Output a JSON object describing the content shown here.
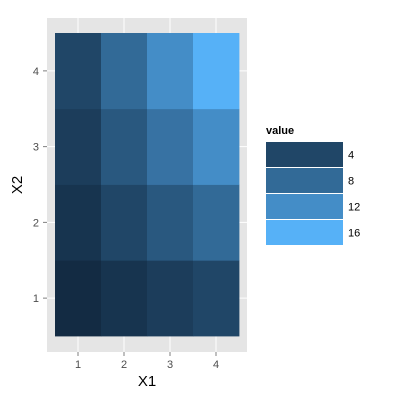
{
  "chart_data": {
    "type": "heatmap",
    "xlabel": "X1",
    "ylabel": "X2",
    "x_categories": [
      "1",
      "2",
      "3",
      "4"
    ],
    "y_categories": [
      "1",
      "2",
      "3",
      "4"
    ],
    "cells": [
      {
        "x": "1",
        "y": "1",
        "value": 1
      },
      {
        "x": "2",
        "y": "1",
        "value": 2
      },
      {
        "x": "3",
        "y": "1",
        "value": 3
      },
      {
        "x": "4",
        "y": "1",
        "value": 4
      },
      {
        "x": "1",
        "y": "2",
        "value": 2
      },
      {
        "x": "2",
        "y": "2",
        "value": 4
      },
      {
        "x": "3",
        "y": "2",
        "value": 6
      },
      {
        "x": "4",
        "y": "2",
        "value": 8
      },
      {
        "x": "1",
        "y": "3",
        "value": 3
      },
      {
        "x": "2",
        "y": "3",
        "value": 6
      },
      {
        "x": "3",
        "y": "3",
        "value": 9
      },
      {
        "x": "4",
        "y": "3",
        "value": 12
      },
      {
        "x": "1",
        "y": "4",
        "value": 4
      },
      {
        "x": "2",
        "y": "4",
        "value": 8
      },
      {
        "x": "3",
        "y": "4",
        "value": 12
      },
      {
        "x": "4",
        "y": "4",
        "value": 16
      }
    ],
    "value_range": [
      1,
      16
    ],
    "color_low": "#132b43",
    "color_high": "#56b1f7",
    "panel_background": "#e5e5e5",
    "grid": true,
    "legend": {
      "title": "value",
      "placement": "right",
      "breaks": [
        4,
        8,
        12,
        16
      ],
      "labels": [
        "4",
        "8",
        "12",
        "16"
      ]
    }
  }
}
